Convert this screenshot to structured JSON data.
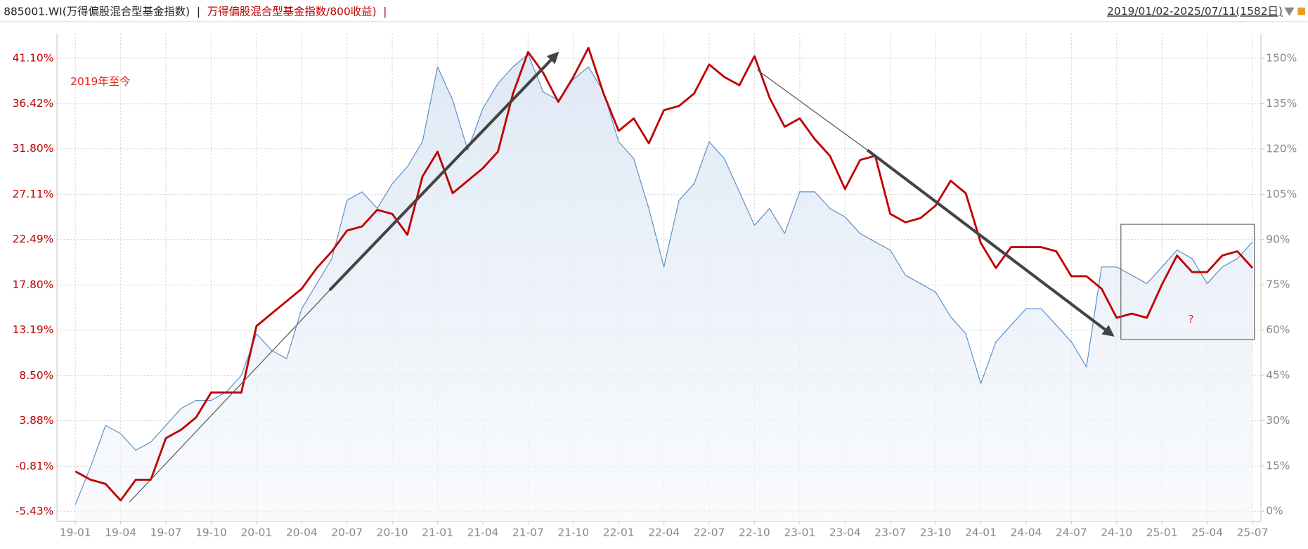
{
  "chart_data": {
    "type": "line",
    "legend_separator": "|",
    "date_range": "2019/01/02-2025/07/11(1582日)",
    "annotations": [
      "2019年至今",
      "?"
    ],
    "categories": [
      "19-01",
      "19-02",
      "19-03",
      "19-04",
      "19-05",
      "19-06",
      "19-07",
      "19-08",
      "19-09",
      "19-10",
      "19-11",
      "19-12",
      "20-01",
      "20-02",
      "20-03",
      "20-04",
      "20-05",
      "20-06",
      "20-07",
      "20-08",
      "20-09",
      "20-10",
      "20-11",
      "20-12",
      "21-01",
      "21-02",
      "21-03",
      "21-04",
      "21-05",
      "21-06",
      "21-07",
      "21-08",
      "21-09",
      "21-10",
      "21-11",
      "21-12",
      "22-01",
      "22-02",
      "22-03",
      "22-04",
      "22-05",
      "22-06",
      "22-07",
      "22-08",
      "22-09",
      "22-10",
      "22-11",
      "22-12",
      "23-01",
      "23-02",
      "23-03",
      "23-04",
      "23-05",
      "23-06",
      "23-07",
      "23-08",
      "23-09",
      "23-10",
      "23-11",
      "23-12",
      "24-01",
      "24-02",
      "24-03",
      "24-04",
      "24-05",
      "24-06",
      "24-07",
      "24-08",
      "24-09",
      "24-10",
      "24-11",
      "24-12",
      "25-01",
      "25-02",
      "25-03",
      "25-04",
      "25-05",
      "25-06",
      "25-07"
    ],
    "xticks": [
      "19-01",
      "19-04",
      "19-07",
      "19-10",
      "20-01",
      "20-04",
      "20-07",
      "20-10",
      "21-01",
      "21-04",
      "21-07",
      "21-10",
      "22-01",
      "22-04",
      "22-07",
      "22-10",
      "23-01",
      "23-04",
      "23-07",
      "23-10",
      "24-01",
      "24-04",
      "24-07",
      "24-10",
      "25-01",
      "25-04",
      "25-07"
    ],
    "series": [
      {
        "name": "885001.WI(万得偏股混合型基金指数)",
        "color": "#5b8fc7",
        "axis": "y2",
        "area": true,
        "values": [
          2.2,
          14.6,
          28.4,
          25.7,
          20.2,
          22.9,
          28.4,
          34.0,
          36.7,
          36.7,
          39.5,
          45.0,
          58.8,
          53.3,
          50.5,
          67.1,
          75.4,
          83.7,
          103.0,
          105.8,
          100.3,
          108.5,
          114.1,
          122.4,
          147.2,
          136.2,
          119.6,
          133.4,
          141.7,
          147.2,
          151.4,
          138.9,
          136.2,
          143.1,
          147.2,
          138.9,
          122.4,
          116.8,
          100.3,
          80.9,
          103.0,
          108.5,
          122.4,
          116.8,
          105.8,
          94.7,
          100.3,
          92.0,
          105.8,
          105.8,
          100.3,
          97.5,
          92.0,
          89.2,
          86.5,
          78.2,
          75.4,
          72.6,
          64.4,
          58.8,
          42.3,
          56.1,
          61.6,
          67.1,
          67.1,
          61.6,
          56.1,
          47.8,
          80.9,
          80.9,
          78.2,
          75.4,
          80.9,
          86.5,
          83.7,
          75.4,
          80.9,
          83.7,
          89.2
        ]
      },
      {
        "name": "万得偏股混合型基金指数/800收益)",
        "color": "#c00000",
        "axis": "y",
        "values": [
          -1.34,
          -2.19,
          -2.62,
          -4.32,
          -2.19,
          -2.19,
          2.08,
          2.93,
          4.21,
          6.77,
          6.77,
          6.77,
          13.59,
          14.87,
          16.15,
          17.43,
          19.56,
          21.27,
          23.4,
          23.83,
          25.53,
          25.11,
          22.97,
          28.95,
          31.5,
          27.24,
          28.52,
          29.8,
          31.5,
          37.48,
          41.74,
          39.61,
          36.62,
          39.18,
          42.17,
          37.48,
          33.64,
          34.92,
          32.36,
          35.77,
          36.2,
          37.48,
          40.46,
          39.18,
          38.33,
          41.32,
          37.05,
          34.06,
          34.92,
          32.78,
          31.08,
          27.67,
          30.65,
          31.08,
          25.11,
          24.25,
          24.68,
          25.96,
          28.52,
          27.24,
          22.12,
          19.56,
          21.7,
          21.7,
          21.7,
          21.27,
          18.71,
          18.71,
          17.43,
          14.44,
          14.87,
          14.44,
          17.86,
          20.84,
          19.14,
          19.14,
          20.84,
          21.27,
          19.56
        ]
      }
    ],
    "ylim": [
      -6.45,
      43.66
    ],
    "yticks": [
      {
        "value": -5.43,
        "label": "-5.43%"
      },
      {
        "value": -0.81,
        "label": "-0.81%"
      },
      {
        "value": 3.88,
        "label": "3.88%"
      },
      {
        "value": 8.5,
        "label": "8.50%"
      },
      {
        "value": 13.19,
        "label": "13.19%"
      },
      {
        "value": 17.8,
        "label": "17.80%"
      },
      {
        "value": 22.49,
        "label": "22.49%"
      },
      {
        "value": 27.11,
        "label": "27.11%"
      },
      {
        "value": 31.8,
        "label": "31.80%"
      },
      {
        "value": 36.42,
        "label": "36.42%"
      },
      {
        "value": 41.1,
        "label": "41.10%"
      }
    ],
    "y2lim": [
      -3.3,
      158.3
    ],
    "y2ticks": [
      {
        "value": 0,
        "label": "0%"
      },
      {
        "value": 15,
        "label": "15%"
      },
      {
        "value": 30,
        "label": "30%"
      },
      {
        "value": 45,
        "label": "45%"
      },
      {
        "value": 60,
        "label": "60%"
      },
      {
        "value": 75,
        "label": "75%"
      },
      {
        "value": 90,
        "label": "90%"
      },
      {
        "value": 105,
        "label": "105%"
      },
      {
        "value": 120,
        "label": "120%"
      },
      {
        "value": 135,
        "label": "135%"
      },
      {
        "value": 150,
        "label": "150%"
      }
    ],
    "grid": true
  }
}
